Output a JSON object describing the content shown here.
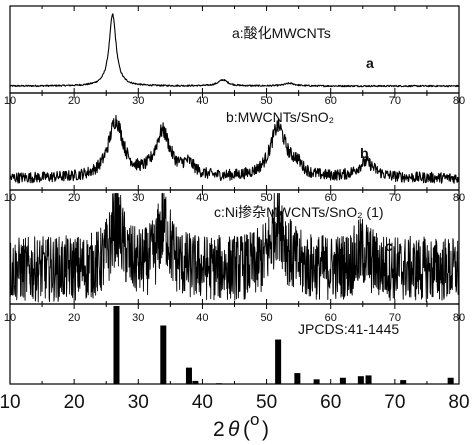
{
  "chart_data": {
    "type": "line",
    "x_range": [
      10,
      80
    ],
    "x_ticks": [
      "10",
      "20",
      "30",
      "40",
      "50",
      "60",
      "70",
      "80"
    ],
    "xlabel_main": "2",
    "xlabel_theta": "θ",
    "xlabel_unit_open": "(",
    "xlabel_unit": "o",
    "xlabel_unit_close": ")",
    "panels": [
      {
        "name": "a",
        "title": "a:酸化MWCNTs",
        "tag": "a",
        "style": "xrd",
        "baseline": 0.08,
        "noise": 0.008,
        "peaks": [
          {
            "x": 26.0,
            "height": 0.82,
            "width": 0.65
          },
          {
            "x": 43.2,
            "height": 0.07,
            "width": 0.9
          },
          {
            "x": 53.6,
            "height": 0.03,
            "width": 1.0
          }
        ]
      },
      {
        "name": "b",
        "title": "b:MWCNTs/SnO₂",
        "tag": "b",
        "style": "xrd",
        "baseline": 0.12,
        "noise": 0.05,
        "peaks": [
          {
            "x": 26.5,
            "height": 0.58,
            "width": 1.4
          },
          {
            "x": 33.8,
            "height": 0.46,
            "width": 1.4
          },
          {
            "x": 37.8,
            "height": 0.12,
            "width": 1.2
          },
          {
            "x": 51.8,
            "height": 0.52,
            "width": 1.5
          },
          {
            "x": 54.7,
            "height": 0.1,
            "width": 1.0
          },
          {
            "x": 65.5,
            "height": 0.16,
            "width": 1.6
          }
        ]
      },
      {
        "name": "c",
        "title": "c:Ni掺杂MWCNTs/SnO₂ (1)",
        "tag": "c",
        "style": "xrd",
        "baseline": 0.3,
        "noise": 0.22,
        "peaks": [
          {
            "x": 26.6,
            "height": 0.42,
            "width": 1.1
          },
          {
            "x": 34.0,
            "height": 0.4,
            "width": 1.1
          },
          {
            "x": 51.8,
            "height": 0.48,
            "width": 1.2
          },
          {
            "x": 65.0,
            "height": 0.15,
            "width": 1.4
          }
        ]
      },
      {
        "name": "jcpds",
        "title": "JPCDS:41-1445",
        "tag": "",
        "style": "stick",
        "sticks": [
          {
            "x": 26.6,
            "intensity": 100
          },
          {
            "x": 33.9,
            "intensity": 75
          },
          {
            "x": 37.9,
            "intensity": 21
          },
          {
            "x": 38.9,
            "intensity": 4
          },
          {
            "x": 42.6,
            "intensity": 1
          },
          {
            "x": 51.8,
            "intensity": 57
          },
          {
            "x": 54.8,
            "intensity": 14
          },
          {
            "x": 57.8,
            "intensity": 6
          },
          {
            "x": 61.9,
            "intensity": 8
          },
          {
            "x": 64.7,
            "intensity": 10
          },
          {
            "x": 65.9,
            "intensity": 11
          },
          {
            "x": 71.3,
            "intensity": 5
          },
          {
            "x": 78.7,
            "intensity": 8
          }
        ]
      }
    ]
  }
}
